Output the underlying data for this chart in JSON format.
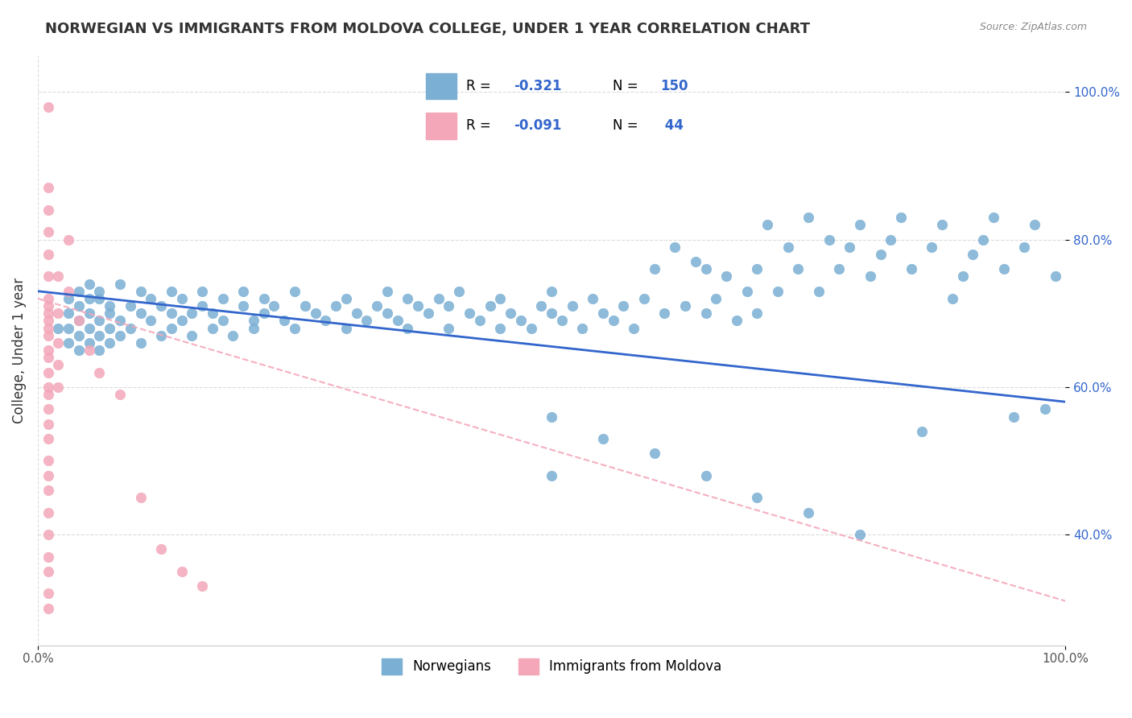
{
  "title": "NORWEGIAN VS IMMIGRANTS FROM MOLDOVA COLLEGE, UNDER 1 YEAR CORRELATION CHART",
  "source": "Source: ZipAtlas.com",
  "ylabel": "College, Under 1 year",
  "xlim": [
    0.0,
    1.0
  ],
  "ylim": [
    0.25,
    1.05
  ],
  "legend_r1": "-0.321",
  "legend_n1": "150",
  "legend_r2": "-0.091",
  "legend_n2": " 44",
  "legend_label1": "Norwegians",
  "legend_label2": "Immigrants from Moldova",
  "blue_color": "#7BAFD4",
  "pink_color": "#F4A7B9",
  "blue_line_color": "#3366CC",
  "pink_line_color": "#FF69B4",
  "blue_scatter": [
    [
      0.02,
      0.68
    ],
    [
      0.03,
      0.72
    ],
    [
      0.03,
      0.66
    ],
    [
      0.03,
      0.7
    ],
    [
      0.03,
      0.68
    ],
    [
      0.04,
      0.73
    ],
    [
      0.04,
      0.69
    ],
    [
      0.04,
      0.67
    ],
    [
      0.04,
      0.71
    ],
    [
      0.04,
      0.65
    ],
    [
      0.05,
      0.72
    ],
    [
      0.05,
      0.7
    ],
    [
      0.05,
      0.68
    ],
    [
      0.05,
      0.74
    ],
    [
      0.05,
      0.66
    ],
    [
      0.06,
      0.72
    ],
    [
      0.06,
      0.69
    ],
    [
      0.06,
      0.67
    ],
    [
      0.06,
      0.73
    ],
    [
      0.06,
      0.65
    ],
    [
      0.07,
      0.71
    ],
    [
      0.07,
      0.68
    ],
    [
      0.07,
      0.7
    ],
    [
      0.07,
      0.66
    ],
    [
      0.08,
      0.74
    ],
    [
      0.08,
      0.69
    ],
    [
      0.08,
      0.67
    ],
    [
      0.09,
      0.71
    ],
    [
      0.09,
      0.68
    ],
    [
      0.1,
      0.73
    ],
    [
      0.1,
      0.7
    ],
    [
      0.1,
      0.66
    ],
    [
      0.11,
      0.72
    ],
    [
      0.11,
      0.69
    ],
    [
      0.12,
      0.67
    ],
    [
      0.12,
      0.71
    ],
    [
      0.13,
      0.73
    ],
    [
      0.13,
      0.7
    ],
    [
      0.13,
      0.68
    ],
    [
      0.14,
      0.69
    ],
    [
      0.14,
      0.72
    ],
    [
      0.15,
      0.7
    ],
    [
      0.15,
      0.67
    ],
    [
      0.16,
      0.71
    ],
    [
      0.16,
      0.73
    ],
    [
      0.17,
      0.68
    ],
    [
      0.17,
      0.7
    ],
    [
      0.18,
      0.72
    ],
    [
      0.18,
      0.69
    ],
    [
      0.19,
      0.67
    ],
    [
      0.2,
      0.71
    ],
    [
      0.2,
      0.73
    ],
    [
      0.21,
      0.69
    ],
    [
      0.21,
      0.68
    ],
    [
      0.22,
      0.72
    ],
    [
      0.22,
      0.7
    ],
    [
      0.23,
      0.71
    ],
    [
      0.24,
      0.69
    ],
    [
      0.25,
      0.68
    ],
    [
      0.25,
      0.73
    ],
    [
      0.26,
      0.71
    ],
    [
      0.27,
      0.7
    ],
    [
      0.28,
      0.69
    ],
    [
      0.29,
      0.71
    ],
    [
      0.3,
      0.72
    ],
    [
      0.3,
      0.68
    ],
    [
      0.31,
      0.7
    ],
    [
      0.32,
      0.69
    ],
    [
      0.33,
      0.71
    ],
    [
      0.34,
      0.73
    ],
    [
      0.34,
      0.7
    ],
    [
      0.35,
      0.69
    ],
    [
      0.36,
      0.72
    ],
    [
      0.36,
      0.68
    ],
    [
      0.37,
      0.71
    ],
    [
      0.38,
      0.7
    ],
    [
      0.39,
      0.72
    ],
    [
      0.4,
      0.71
    ],
    [
      0.4,
      0.68
    ],
    [
      0.41,
      0.73
    ],
    [
      0.42,
      0.7
    ],
    [
      0.43,
      0.69
    ],
    [
      0.44,
      0.71
    ],
    [
      0.45,
      0.72
    ],
    [
      0.45,
      0.68
    ],
    [
      0.46,
      0.7
    ],
    [
      0.47,
      0.69
    ],
    [
      0.48,
      0.68
    ],
    [
      0.49,
      0.71
    ],
    [
      0.5,
      0.7
    ],
    [
      0.5,
      0.73
    ],
    [
      0.51,
      0.69
    ],
    [
      0.52,
      0.71
    ],
    [
      0.53,
      0.68
    ],
    [
      0.54,
      0.72
    ],
    [
      0.55,
      0.7
    ],
    [
      0.56,
      0.69
    ],
    [
      0.57,
      0.71
    ],
    [
      0.58,
      0.68
    ],
    [
      0.59,
      0.72
    ],
    [
      0.6,
      0.76
    ],
    [
      0.61,
      0.7
    ],
    [
      0.62,
      0.79
    ],
    [
      0.63,
      0.71
    ],
    [
      0.64,
      0.77
    ],
    [
      0.65,
      0.7
    ],
    [
      0.65,
      0.76
    ],
    [
      0.66,
      0.72
    ],
    [
      0.67,
      0.75
    ],
    [
      0.68,
      0.69
    ],
    [
      0.69,
      0.73
    ],
    [
      0.7,
      0.76
    ],
    [
      0.7,
      0.7
    ],
    [
      0.71,
      0.82
    ],
    [
      0.72,
      0.73
    ],
    [
      0.73,
      0.79
    ],
    [
      0.74,
      0.76
    ],
    [
      0.75,
      0.83
    ],
    [
      0.76,
      0.73
    ],
    [
      0.77,
      0.8
    ],
    [
      0.78,
      0.76
    ],
    [
      0.79,
      0.79
    ],
    [
      0.8,
      0.82
    ],
    [
      0.81,
      0.75
    ],
    [
      0.82,
      0.78
    ],
    [
      0.83,
      0.8
    ],
    [
      0.84,
      0.83
    ],
    [
      0.85,
      0.76
    ],
    [
      0.86,
      0.54
    ],
    [
      0.87,
      0.79
    ],
    [
      0.88,
      0.82
    ],
    [
      0.89,
      0.72
    ],
    [
      0.9,
      0.75
    ],
    [
      0.91,
      0.78
    ],
    [
      0.92,
      0.8
    ],
    [
      0.93,
      0.83
    ],
    [
      0.94,
      0.76
    ],
    [
      0.95,
      0.56
    ],
    [
      0.96,
      0.79
    ],
    [
      0.97,
      0.82
    ],
    [
      0.98,
      0.57
    ],
    [
      0.99,
      0.75
    ],
    [
      0.5,
      0.56
    ],
    [
      0.55,
      0.53
    ],
    [
      0.6,
      0.51
    ],
    [
      0.65,
      0.48
    ],
    [
      0.7,
      0.45
    ],
    [
      0.75,
      0.43
    ],
    [
      0.8,
      0.4
    ],
    [
      0.5,
      0.48
    ]
  ],
  "pink_scatter": [
    [
      0.01,
      0.98
    ],
    [
      0.01,
      0.87
    ],
    [
      0.01,
      0.84
    ],
    [
      0.01,
      0.81
    ],
    [
      0.01,
      0.78
    ],
    [
      0.01,
      0.75
    ],
    [
      0.01,
      0.72
    ],
    [
      0.01,
      0.71
    ],
    [
      0.01,
      0.7
    ],
    [
      0.01,
      0.69
    ],
    [
      0.01,
      0.68
    ],
    [
      0.01,
      0.67
    ],
    [
      0.01,
      0.65
    ],
    [
      0.01,
      0.64
    ],
    [
      0.01,
      0.62
    ],
    [
      0.01,
      0.6
    ],
    [
      0.01,
      0.59
    ],
    [
      0.01,
      0.57
    ],
    [
      0.01,
      0.55
    ],
    [
      0.01,
      0.53
    ],
    [
      0.01,
      0.5
    ],
    [
      0.01,
      0.48
    ],
    [
      0.01,
      0.46
    ],
    [
      0.01,
      0.43
    ],
    [
      0.01,
      0.4
    ],
    [
      0.01,
      0.37
    ],
    [
      0.01,
      0.35
    ],
    [
      0.01,
      0.32
    ],
    [
      0.01,
      0.3
    ],
    [
      0.02,
      0.75
    ],
    [
      0.02,
      0.7
    ],
    [
      0.02,
      0.66
    ],
    [
      0.02,
      0.63
    ],
    [
      0.02,
      0.6
    ],
    [
      0.03,
      0.8
    ],
    [
      0.03,
      0.73
    ],
    [
      0.04,
      0.69
    ],
    [
      0.05,
      0.65
    ],
    [
      0.06,
      0.62
    ],
    [
      0.08,
      0.59
    ],
    [
      0.1,
      0.45
    ],
    [
      0.12,
      0.38
    ],
    [
      0.14,
      0.35
    ],
    [
      0.16,
      0.33
    ]
  ],
  "blue_trend_x": [
    0.0,
    1.0
  ],
  "blue_trend_y": [
    0.73,
    0.58
  ],
  "pink_trend_x": [
    0.0,
    1.0
  ],
  "pink_trend_y": [
    0.72,
    0.31
  ]
}
